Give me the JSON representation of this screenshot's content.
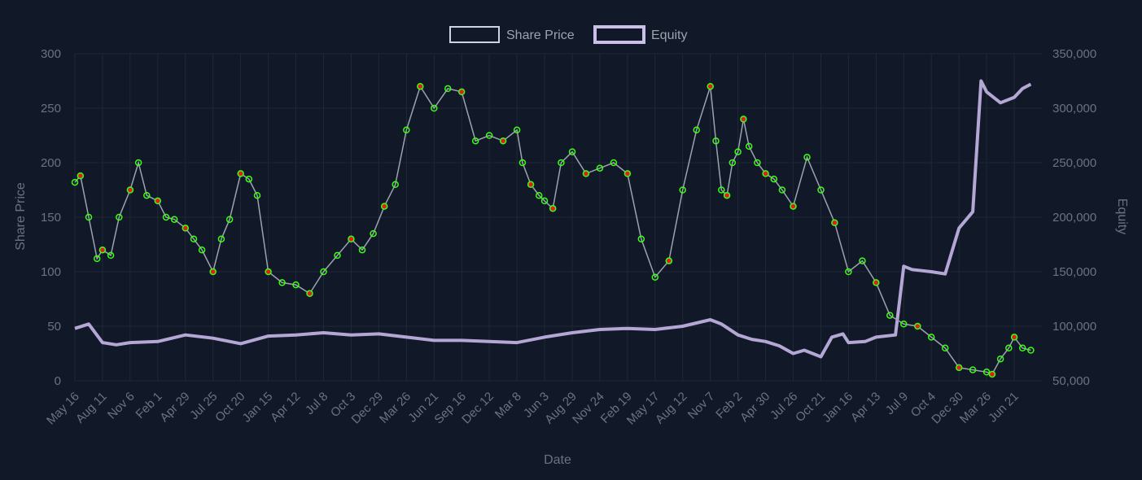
{
  "chart_data": {
    "type": "line",
    "legend": {
      "placement": "top-center",
      "items": [
        {
          "label": "Share Price",
          "series": "share_price"
        },
        {
          "label": "Equity",
          "series": "equity"
        }
      ]
    },
    "xlabel": "Date",
    "ylabel_left": "Share Price",
    "ylabel_right": "Equity",
    "ylim_left": [
      0,
      300
    ],
    "ylim_right": [
      50000,
      350000
    ],
    "y_ticks_left": [
      "0",
      "50",
      "100",
      "150",
      "200",
      "250",
      "300"
    ],
    "y_ticks_right": [
      "50,000",
      "100,000",
      "150,000",
      "200,000",
      "250,000",
      "300,000",
      "350,000"
    ],
    "x_ticks": [
      "May 16",
      "Aug 11",
      "Nov 6",
      "Feb 1",
      "Apr 29",
      "Jul 25",
      "Oct 20",
      "Jan 15",
      "Apr 12",
      "Jul 8",
      "Oct 3",
      "Dec 29",
      "Mar 26",
      "Jun 21",
      "Sep 16",
      "Dec 12",
      "Mar 8",
      "Jun 3",
      "Aug 29",
      "Nov 24",
      "Feb 19",
      "May 17",
      "Aug 12",
      "Nov 7",
      "Feb 2",
      "Apr 30",
      "Jul 26",
      "Oct 21",
      "Jan 16",
      "Apr 13",
      "Jul 9",
      "Oct 4",
      "Dec 30",
      "Mar 26",
      "Jun 21"
    ],
    "grid": true,
    "colors": {
      "background": "#111827",
      "share_price_line": "#9ca3af",
      "equity_line": "#b4a7d6",
      "marker_green": "#39ff14",
      "marker_red": "#e11d1d",
      "text": "#6b7280",
      "grid": "#1f2937"
    },
    "series": [
      {
        "name": "Share Price",
        "axis": "left",
        "x_index": [
          0,
          0.2,
          0.5,
          0.8,
          1.0,
          1.3,
          1.6,
          2.0,
          2.3,
          2.6,
          3.0,
          3.3,
          3.6,
          4.0,
          4.3,
          4.6,
          5.0,
          5.3,
          5.6,
          6.0,
          6.3,
          6.6,
          7.0,
          7.5,
          8.0,
          8.5,
          9.0,
          9.5,
          10.0,
          10.4,
          10.8,
          11.2,
          11.6,
          12.0,
          12.5,
          13.0,
          13.5,
          14.0,
          14.5,
          15.0,
          15.5,
          16.0,
          16.2,
          16.5,
          16.8,
          17.0,
          17.3,
          17.6,
          18.0,
          18.5,
          19.0,
          19.5,
          20.0,
          20.5,
          21.0,
          21.5,
          22.0,
          22.5,
          23.0,
          23.2,
          23.4,
          23.6,
          23.8,
          24.0,
          24.2,
          24.4,
          24.7,
          25.0,
          25.3,
          25.6,
          26.0,
          26.5,
          27.0,
          27.5,
          28.0,
          28.5,
          29.0,
          29.5,
          30.0,
          30.5,
          31.0,
          31.5,
          32.0,
          32.5,
          33.0,
          33.2,
          33.5,
          33.8,
          34.0,
          34.3,
          34.6
        ],
        "values": [
          182,
          188,
          150,
          112,
          120,
          115,
          150,
          175,
          200,
          170,
          165,
          150,
          148,
          140,
          130,
          120,
          100,
          130,
          148,
          190,
          185,
          170,
          100,
          90,
          88,
          80,
          100,
          115,
          130,
          120,
          135,
          160,
          180,
          230,
          270,
          250,
          268,
          265,
          220,
          225,
          220,
          230,
          200,
          180,
          170,
          165,
          158,
          200,
          210,
          190,
          195,
          200,
          190,
          130,
          95,
          110,
          175,
          230,
          270,
          220,
          175,
          170,
          200,
          210,
          240,
          215,
          200,
          190,
          185,
          175,
          160,
          205,
          175,
          145,
          100,
          110,
          90,
          60,
          52,
          50,
          40,
          30,
          12,
          10,
          8,
          6,
          20,
          30,
          40,
          30,
          28
        ]
      },
      {
        "name": "Equity",
        "axis": "right",
        "x_index": [
          0,
          0.5,
          1.0,
          1.5,
          2.0,
          3.0,
          4.0,
          5.0,
          6.0,
          7.0,
          8.0,
          9.0,
          10.0,
          11.0,
          12.0,
          13.0,
          14.0,
          15.0,
          16.0,
          17.0,
          18.0,
          19.0,
          20.0,
          21.0,
          22.0,
          23.0,
          23.4,
          24.0,
          24.5,
          25.0,
          25.5,
          26.0,
          26.4,
          27.0,
          27.4,
          27.8,
          28.0,
          28.6,
          29.0,
          29.7,
          30.0,
          30.3,
          31.0,
          31.5,
          32.0,
          32.5,
          32.8,
          33.0,
          33.5,
          34.0,
          34.3,
          34.6
        ],
        "values": [
          98000,
          102000,
          85000,
          83000,
          85000,
          86000,
          92000,
          89000,
          84000,
          91000,
          92000,
          94000,
          92000,
          93000,
          90000,
          87000,
          87000,
          86000,
          85000,
          90000,
          94000,
          97000,
          98000,
          97000,
          100000,
          106000,
          102000,
          92000,
          88000,
          86000,
          82000,
          75000,
          78000,
          72000,
          90000,
          93000,
          85000,
          86000,
          90000,
          92000,
          155000,
          152000,
          150000,
          148000,
          190000,
          205000,
          325000,
          315000,
          305000,
          310000,
          318000,
          322000
        ]
      }
    ]
  }
}
